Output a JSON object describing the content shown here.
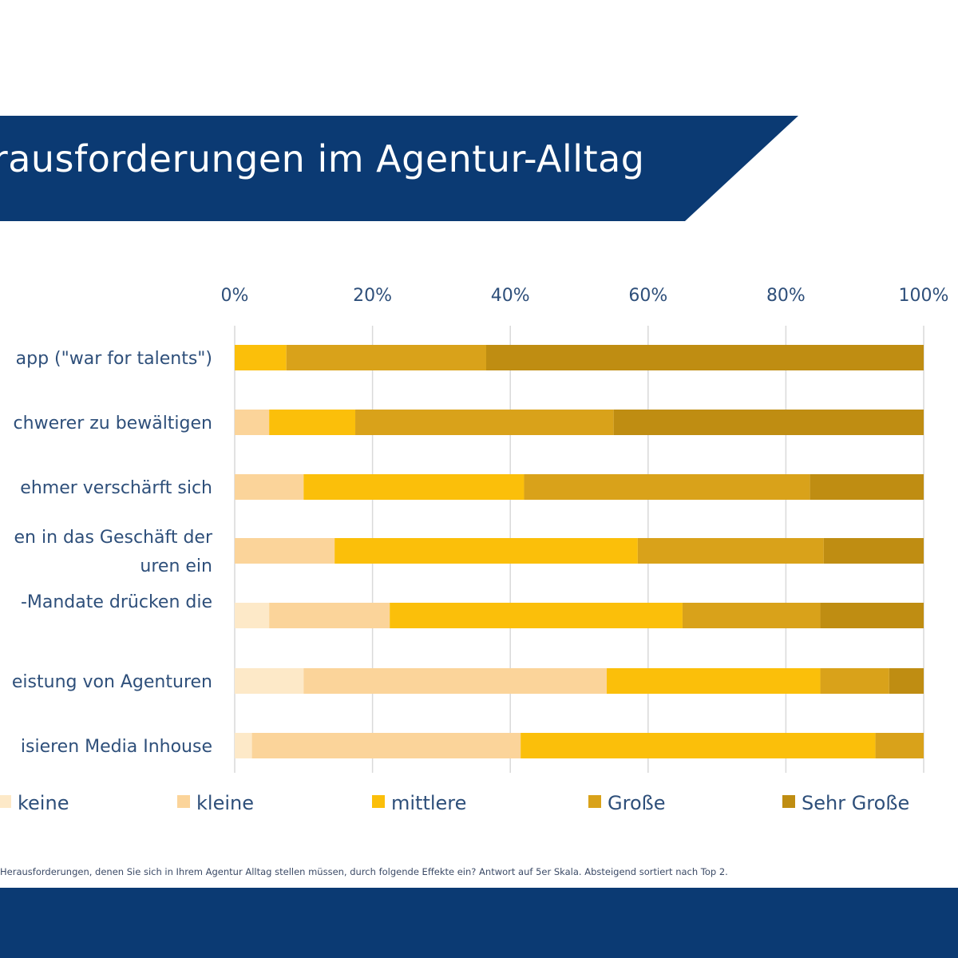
{
  "title": "erausforderungen im Agentur-Alltag",
  "footnote": "Herausforderungen, denen Sie sich in Ihrem Agentur Alltag stellen müssen, durch folgende Effekte ein? Antwort auf 5er Skala. Absteigend sortiert nach Top 2.",
  "colors": {
    "banner": "#0b3a73",
    "keine": "#fde9c8",
    "kleine": "#fbd49a",
    "mittlere": "#fbbf0a",
    "grosse": "#d9a21a",
    "sehr_grosse": "#bf8d12"
  },
  "chart_data": {
    "type": "bar",
    "orientation": "horizontal",
    "stacked": true,
    "xlim": [
      0,
      100
    ],
    "xticks": [
      "0%",
      "20%",
      "40%",
      "60%",
      "80%",
      "100%"
    ],
    "legend_position": "bottom",
    "categories": [
      [
        "app (\"war for talents\")"
      ],
      [
        "chwerer zu bewältigen"
      ],
      [
        "ehmer verschärft sich"
      ],
      [
        "en in das Geschäft der",
        "uren ein"
      ],
      [
        "-Mandate drücken die"
      ],
      [
        "eistung von Agenturen"
      ],
      [
        "isieren Media Inhouse"
      ]
    ],
    "series": [
      {
        "name": "keine",
        "color": "#fde9c8",
        "values": [
          0,
          0,
          0,
          0,
          5,
          10,
          2.5
        ]
      },
      {
        "name": "kleine",
        "color": "#fbd49a",
        "values": [
          0,
          5,
          10,
          14.5,
          17.5,
          44,
          39
        ]
      },
      {
        "name": "mittlere",
        "color": "#fbbf0a",
        "values": [
          7.5,
          12.5,
          32,
          44,
          42.5,
          31,
          51.5
        ]
      },
      {
        "name": "Große",
        "color": "#d9a21a",
        "values": [
          29,
          37.5,
          41.5,
          27,
          20,
          10,
          7
        ]
      },
      {
        "name": "Sehr Große",
        "color": "#bf8d12",
        "values": [
          63.5,
          45,
          16.5,
          14.5,
          15,
          5,
          0
        ]
      }
    ]
  }
}
